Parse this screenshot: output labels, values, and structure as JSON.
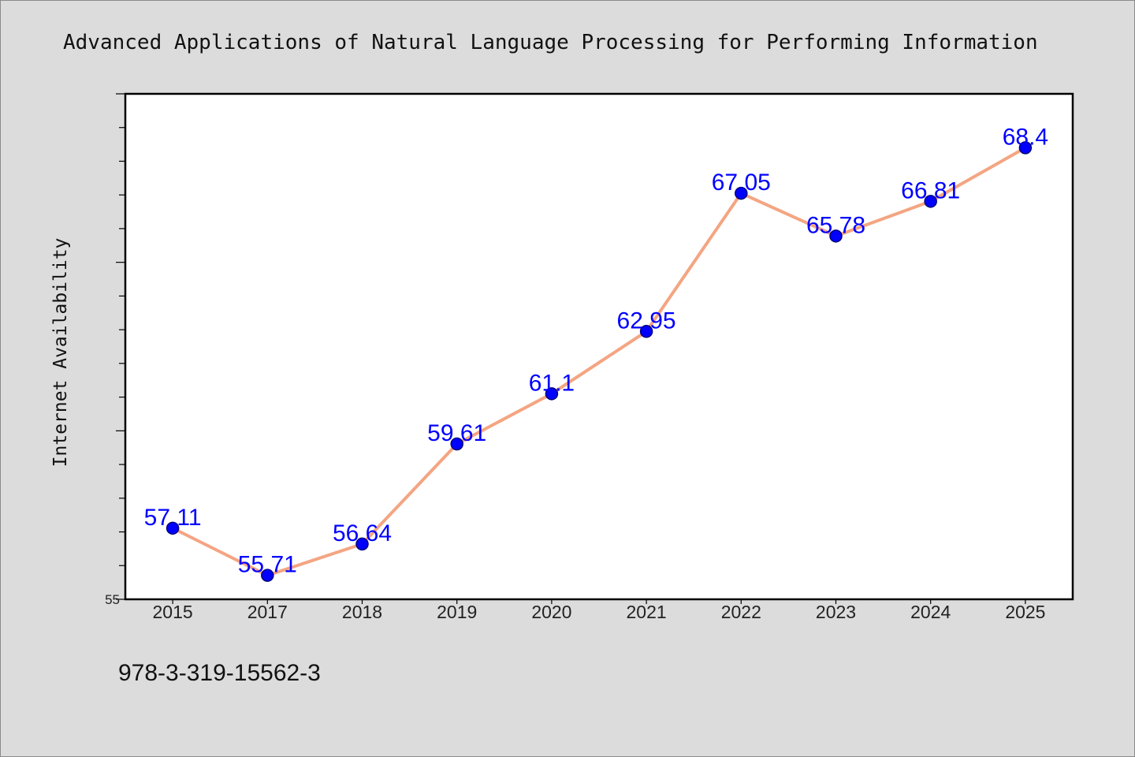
{
  "chart_data": {
    "type": "line",
    "title": "Advanced Applications of Natural Language Processing for Performing Information",
    "xlabel": "",
    "ylabel": "Internet Availability",
    "categories": [
      "2015",
      "2017",
      "2018",
      "2019",
      "2020",
      "2021",
      "2022",
      "2023",
      "2024",
      "2025"
    ],
    "series": [
      {
        "values": [
          57.11,
          55.71,
          56.64,
          59.61,
          61.1,
          62.95,
          67.05,
          65.78,
          66.81,
          68.4
        ],
        "line_color": "#f4a582",
        "marker_color": "#0000ff",
        "data_label_color": "#0000ff"
      }
    ],
    "ylim": [
      55,
      70
    ],
    "y_tick_labels": [
      {
        "value": 55,
        "label": "55"
      }
    ],
    "y_minor_tick_step": 1,
    "y_major_tick_step": 5,
    "grid": false,
    "legend": false,
    "data_labels": true
  },
  "footer": {
    "text": "978-3-319-15562-3"
  },
  "colors": {
    "background": "#dcdcdc",
    "plot_background": "#ffffff",
    "axis": "#000000",
    "frame": "#8a8a8a"
  }
}
